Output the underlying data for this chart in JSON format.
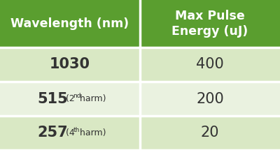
{
  "header_bg_color": "#5a9e2f",
  "row_bg_colors": [
    "#d9e8c4",
    "#eaf2e0"
  ],
  "header_text_color": "#ffffff",
  "row_text_color": "#333333",
  "col1_header": "Wavelength (nm)",
  "col2_header": "Max Pulse\nEnergy (uJ)",
  "rows": [
    {
      "col1_main": "1030",
      "col1_prefix": "",
      "col1_num": "",
      "col1_super": "",
      "col1_suffix": "",
      "col2": "400"
    },
    {
      "col1_main": "515",
      "col1_prefix": " (2",
      "col1_num": "2",
      "col1_super": "nd",
      "col1_suffix": " harm)",
      "col2": "200"
    },
    {
      "col1_main": "257",
      "col1_prefix": " (4",
      "col1_num": "4",
      "col1_super": "th",
      "col1_suffix": " harm)",
      "col2": "20"
    }
  ],
  "col_split": 0.5,
  "header_fontsize": 12.5,
  "row_fontsize": 15,
  "small_fontsize": 9,
  "super_fontsize": 6.5,
  "border_color": "#ffffff",
  "border_linewidth": 2.5,
  "fig_width": 4.0,
  "fig_height": 2.15,
  "dpi": 100
}
